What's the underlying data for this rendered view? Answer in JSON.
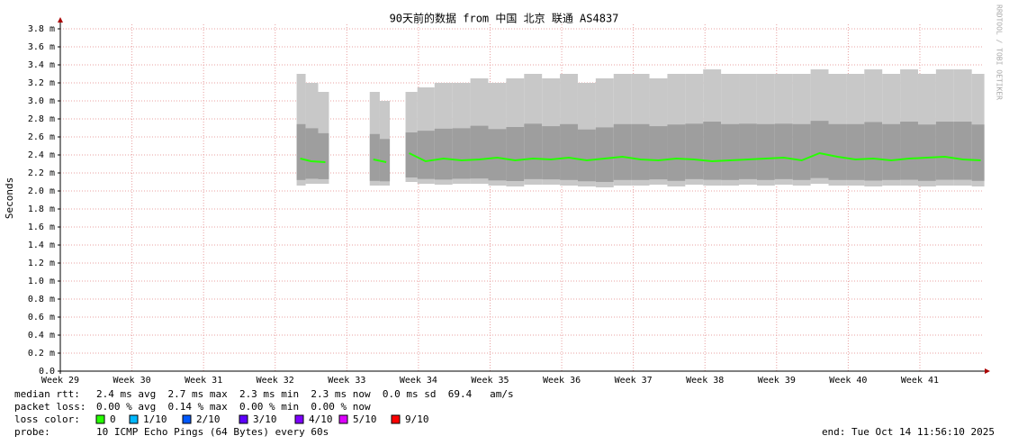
{
  "chart_data": {
    "type": "smoke",
    "title": "90天前的数据 from 中国 北京 联通 AS4837",
    "ylabel": "Seconds",
    "credit": "RRDTOOL / TOBI OETIKER",
    "xlim": [
      29,
      41.88
    ],
    "xticks": [
      {
        "value": 29,
        "label": "Week 29"
      },
      {
        "value": 30,
        "label": "Week 30"
      },
      {
        "value": 31,
        "label": "Week 31"
      },
      {
        "value": 32,
        "label": "Week 32"
      },
      {
        "value": 33,
        "label": "Week 33"
      },
      {
        "value": 34,
        "label": "Week 34"
      },
      {
        "value": 35,
        "label": "Week 35"
      },
      {
        "value": 36,
        "label": "Week 36"
      },
      {
        "value": 37,
        "label": "Week 37"
      },
      {
        "value": 38,
        "label": "Week 38"
      },
      {
        "value": 39,
        "label": "Week 39"
      },
      {
        "value": 40,
        "label": "Week 40"
      },
      {
        "value": 41,
        "label": "Week 41"
      }
    ],
    "ylim": [
      0,
      3.85
    ],
    "yticks": [
      {
        "value": 0,
        "label": "0.0"
      },
      {
        "value": 0.2,
        "label": "0.2 m"
      },
      {
        "value": 0.4,
        "label": "0.4 m"
      },
      {
        "value": 0.6,
        "label": "0.6 m"
      },
      {
        "value": 0.8,
        "label": "0.8 m"
      },
      {
        "value": 1.0,
        "label": "1.0 m"
      },
      {
        "value": 1.2,
        "label": "1.2 m"
      },
      {
        "value": 1.4,
        "label": "1.4 m"
      },
      {
        "value": 1.6,
        "label": "1.6 m"
      },
      {
        "value": 1.8,
        "label": "1.8 m"
      },
      {
        "value": 2.0,
        "label": "2.0 m"
      },
      {
        "value": 2.2,
        "label": "2.2 m"
      },
      {
        "value": 2.4,
        "label": "2.4 m"
      },
      {
        "value": 2.6,
        "label": "2.6 m"
      },
      {
        "value": 2.8,
        "label": "2.8 m"
      },
      {
        "value": 3.0,
        "label": "3.0 m"
      },
      {
        "value": 3.2,
        "label": "3.2 m"
      },
      {
        "value": 3.4,
        "label": "3.4 m"
      },
      {
        "value": 3.6,
        "label": "3.6 m"
      },
      {
        "value": 3.8,
        "label": "3.8 m"
      }
    ],
    "grid": true,
    "x": [
      32.35,
      32.5,
      32.7,
      33.0,
      33.37,
      33.55,
      33.7,
      33.87,
      34.1,
      34.35,
      34.6,
      34.85,
      35.1,
      35.35,
      35.6,
      35.85,
      36.1,
      36.35,
      36.6,
      36.85,
      37.1,
      37.35,
      37.6,
      37.85,
      38.1,
      38.35,
      38.6,
      38.85,
      39.1,
      39.35,
      39.6,
      39.85,
      40.1,
      40.35,
      40.6,
      40.85,
      41.1,
      41.35,
      41.6,
      41.85
    ],
    "series": [
      {
        "color": "#26ff00",
        "values": [
          2.36,
          2.33,
          2.32,
          null,
          2.35,
          2.32,
          null,
          2.42,
          2.33,
          2.36,
          2.34,
          2.35,
          2.37,
          2.34,
          2.36,
          2.35,
          2.37,
          2.34,
          2.36,
          2.38,
          2.35,
          2.34,
          2.36,
          2.35,
          2.33,
          2.34,
          2.35,
          2.36,
          2.37,
          2.34,
          2.42,
          2.38,
          2.35,
          2.36,
          2.34,
          2.36,
          2.37,
          2.38,
          2.35,
          2.34
        ]
      },
      {
        "color": "#c8c8c8",
        "values": [
          3.3,
          3.2,
          3.1,
          null,
          3.1,
          3.0,
          null,
          3.1,
          3.15,
          3.2,
          3.2,
          3.25,
          3.2,
          3.25,
          3.3,
          3.25,
          3.3,
          3.2,
          3.25,
          3.3,
          3.3,
          3.25,
          3.3,
          3.3,
          3.35,
          3.3,
          3.3,
          3.3,
          3.3,
          3.3,
          3.35,
          3.3,
          3.3,
          3.35,
          3.3,
          3.35,
          3.3,
          3.35,
          3.35,
          3.3
        ]
      },
      {
        "color": "#c8c8c8",
        "values": [
          2.06,
          2.08,
          2.08,
          null,
          2.06,
          2.06,
          null,
          2.1,
          2.08,
          2.07,
          2.08,
          2.08,
          2.06,
          2.05,
          2.07,
          2.07,
          2.06,
          2.05,
          2.04,
          2.06,
          2.06,
          2.07,
          2.05,
          2.07,
          2.06,
          2.06,
          2.07,
          2.06,
          2.07,
          2.06,
          2.08,
          2.06,
          2.06,
          2.05,
          2.06,
          2.06,
          2.05,
          2.06,
          2.06,
          2.05
        ]
      }
    ]
  },
  "footer": {
    "median_label": "median rtt:",
    "median_text": "2.4 ms avg  2.7 ms max  2.3 ms min  2.3 ms now  0.0 ms sd  69.4   am/s",
    "loss_label": "packet loss:",
    "loss_text": "0.00 % avg  0.14 % max  0.00 % min  0.00 % now",
    "color_label": "loss color:",
    "colors": [
      {
        "label": "0",
        "color": "#26ff00"
      },
      {
        "label": "1/10",
        "color": "#00b8ff"
      },
      {
        "label": "2/10",
        "color": "#0059ff"
      },
      {
        "label": "3/10",
        "color": "#5e00ff"
      },
      {
        "label": "4/10",
        "color": "#7e00ff"
      },
      {
        "label": "5/10",
        "color": "#dd00ff"
      },
      {
        "label": "9/10",
        "color": "#ff0000"
      }
    ],
    "probe_label": "probe:",
    "probe_text": "10 ICMP Echo Pings (64 Bytes) every 60s",
    "end_text": "end: Tue Oct 14 11:56:10 2025"
  }
}
